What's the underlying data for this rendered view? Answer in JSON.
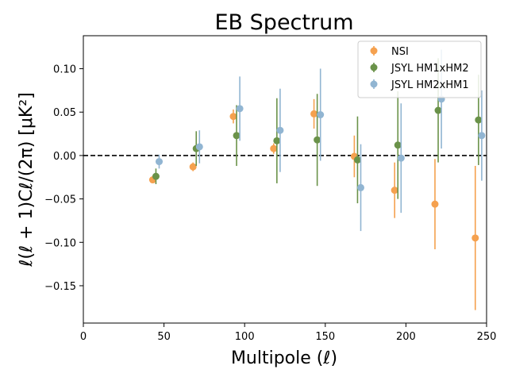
{
  "chart_data": {
    "type": "scatter",
    "title": "EB Spectrum",
    "xlabel": "Multipole (ℓ)",
    "ylabel": "ℓ(ℓ + 1)Cℓ/(2π) [μK²]",
    "xlim": [
      0,
      250
    ],
    "ylim": [
      -0.193,
      0.138
    ],
    "x_ticks": [
      0,
      50,
      100,
      150,
      200,
      250
    ],
    "y_ticks": [
      -0.15,
      -0.1,
      -0.05,
      0.0,
      0.05,
      0.1
    ],
    "x_tick_labels": [
      "0",
      "50",
      "100",
      "150",
      "200",
      "250"
    ],
    "y_tick_labels": [
      "−0.15",
      "−0.10",
      "−0.05",
      "0.00",
      "0.05",
      "0.10"
    ],
    "reference_line": {
      "y": 0,
      "style": "dashed",
      "color": "#000000"
    },
    "legend_position": "top-right",
    "series": [
      {
        "name": "NSI",
        "color": "#f5a14f",
        "x": [
          43,
          68,
          93,
          118,
          143,
          168,
          193,
          218,
          243
        ],
        "y": [
          -0.028,
          -0.013,
          0.045,
          0.008,
          0.048,
          -0.001,
          -0.04,
          -0.056,
          -0.095
        ],
        "yerr": [
          0.004,
          0.005,
          0.008,
          0.006,
          0.017,
          0.024,
          0.032,
          0.052,
          0.083
        ]
      },
      {
        "name": "JSYL HM1xHM2",
        "color": "#6a9249",
        "x": [
          45,
          70,
          95,
          120,
          145,
          170,
          195,
          220,
          245
        ],
        "y": [
          -0.024,
          0.008,
          0.023,
          0.017,
          0.018,
          -0.005,
          0.012,
          0.052,
          0.041
        ],
        "yerr": [
          0.009,
          0.02,
          0.035,
          0.049,
          0.053,
          0.05,
          0.062,
          0.06,
          0.052
        ]
      },
      {
        "name": "JSYL HM2xHM1",
        "color": "#91b5d2",
        "x": [
          47,
          72,
          97,
          122,
          147,
          172,
          197,
          222,
          247
        ],
        "y": [
          -0.007,
          0.01,
          0.054,
          0.029,
          0.047,
          -0.037,
          -0.003,
          0.065,
          0.023
        ],
        "yerr": [
          0.008,
          0.019,
          0.037,
          0.048,
          0.053,
          0.05,
          0.063,
          0.057,
          0.052
        ]
      }
    ]
  }
}
